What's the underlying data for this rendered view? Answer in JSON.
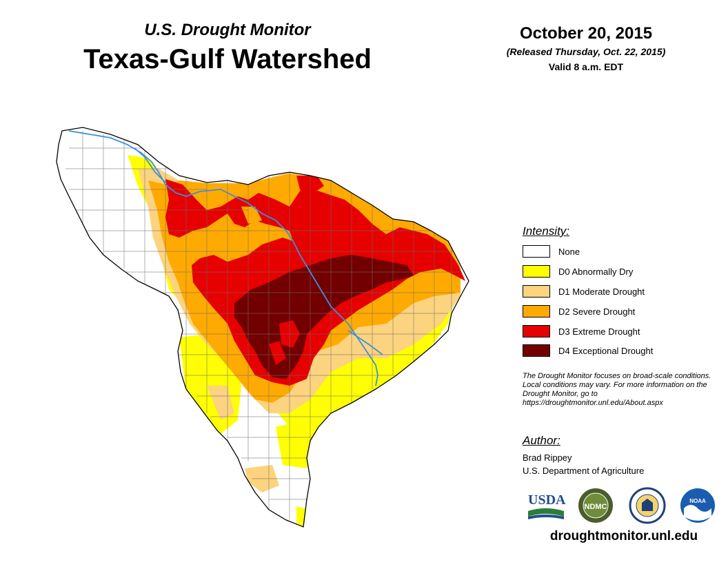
{
  "header": {
    "subtitle": "U.S. Drought Monitor",
    "title": "Texas-Gulf Watershed",
    "date": "October 20, 2015",
    "released": "(Released Thursday, Oct. 22, 2015)",
    "valid": "Valid 8 a.m. EDT"
  },
  "legend": {
    "title": "Intensity:",
    "items": [
      {
        "label": "None",
        "color": "#ffffff"
      },
      {
        "label": "D0 Abnormally Dry",
        "color": "#ffff00"
      },
      {
        "label": "D1 Moderate Drought",
        "color": "#fcd37f"
      },
      {
        "label": "D2 Severe Drought",
        "color": "#ffaa00"
      },
      {
        "label": "D3 Extreme Drought",
        "color": "#e60000"
      },
      {
        "label": "D4 Exceptional Drought",
        "color": "#730000"
      }
    ]
  },
  "note": "The Drought Monitor focuses on broad-scale conditions. Local conditions may vary. For more information on the Drought Monitor, go to https://droughtmonitor.unl.edu/About.aspx",
  "author": {
    "heading": "Author:",
    "name": "Brad Rippey",
    "org": "U.S. Department of Agriculture"
  },
  "logos": {
    "usda": "USDA",
    "ndmc": "NDMC",
    "noaa": "NOAA"
  },
  "website": "droughtmonitor.unl.edu",
  "colors": {
    "river": "#3a8fe0",
    "county_line": "#6e6e6e",
    "outline": "#000000"
  }
}
